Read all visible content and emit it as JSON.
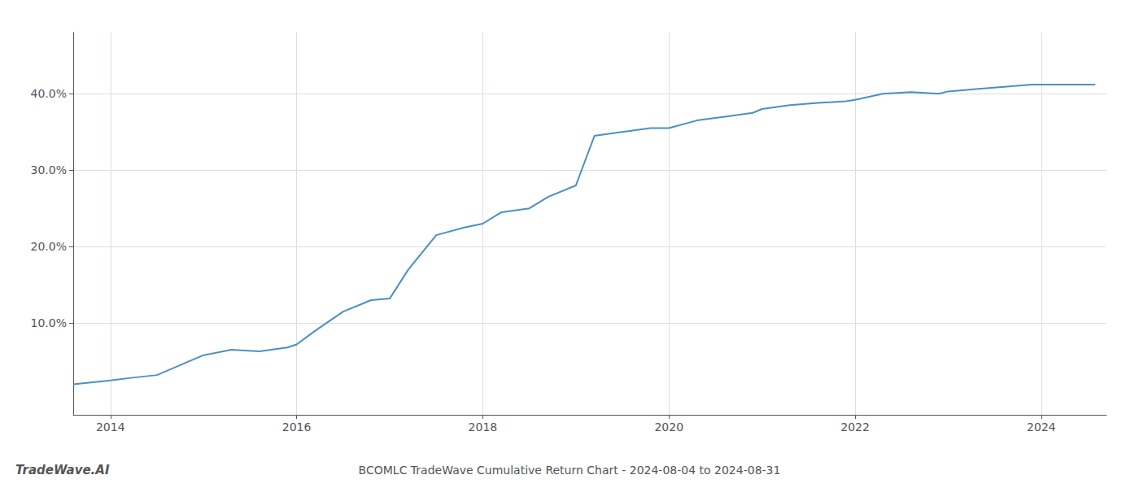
{
  "chart_data": {
    "type": "line",
    "title": "BCOMLC TradeWave Cumulative Return Chart - 2024-08-04 to 2024-08-31",
    "annotations": [
      "TradeWave.AI"
    ],
    "x": [
      2013.6,
      2014.0,
      2014.2,
      2014.5,
      2014.75,
      2015.0,
      2015.3,
      2015.6,
      2015.9,
      2016.0,
      2016.2,
      2016.5,
      2016.8,
      2017.0,
      2017.2,
      2017.5,
      2017.8,
      2018.0,
      2018.2,
      2018.5,
      2018.7,
      2019.0,
      2019.2,
      2019.5,
      2019.8,
      2020.0,
      2020.3,
      2020.6,
      2020.9,
      2021.0,
      2021.3,
      2021.6,
      2021.9,
      2022.0,
      2022.3,
      2022.6,
      2022.9,
      2023.0,
      2023.3,
      2023.6,
      2023.9,
      2024.0,
      2024.3,
      2024.58
    ],
    "values": [
      2.0,
      2.5,
      2.8,
      3.2,
      4.5,
      5.8,
      6.5,
      6.3,
      6.8,
      7.2,
      9.0,
      11.5,
      13.0,
      13.2,
      17.0,
      21.5,
      22.5,
      23.0,
      24.5,
      25.0,
      26.5,
      28.0,
      34.5,
      35.0,
      35.5,
      35.5,
      36.5,
      37.0,
      37.5,
      38.0,
      38.5,
      38.8,
      39.0,
      39.2,
      40.0,
      40.2,
      40.0,
      40.3,
      40.6,
      40.9,
      41.2,
      41.2,
      41.2,
      41.2
    ],
    "color": "#4a90c4",
    "xlim": [
      2013.6,
      2024.7
    ],
    "ylim": [
      -2,
      48
    ],
    "xticks": [
      2014,
      2016,
      2018,
      2020,
      2022,
      2024
    ],
    "yticks": [
      {
        "value": 10.0,
        "label": "10.0%"
      },
      {
        "value": 20.0,
        "label": "20.0%"
      },
      {
        "value": 30.0,
        "label": "30.0%"
      },
      {
        "value": 40.0,
        "label": "40.0%"
      }
    ],
    "grid": true
  }
}
